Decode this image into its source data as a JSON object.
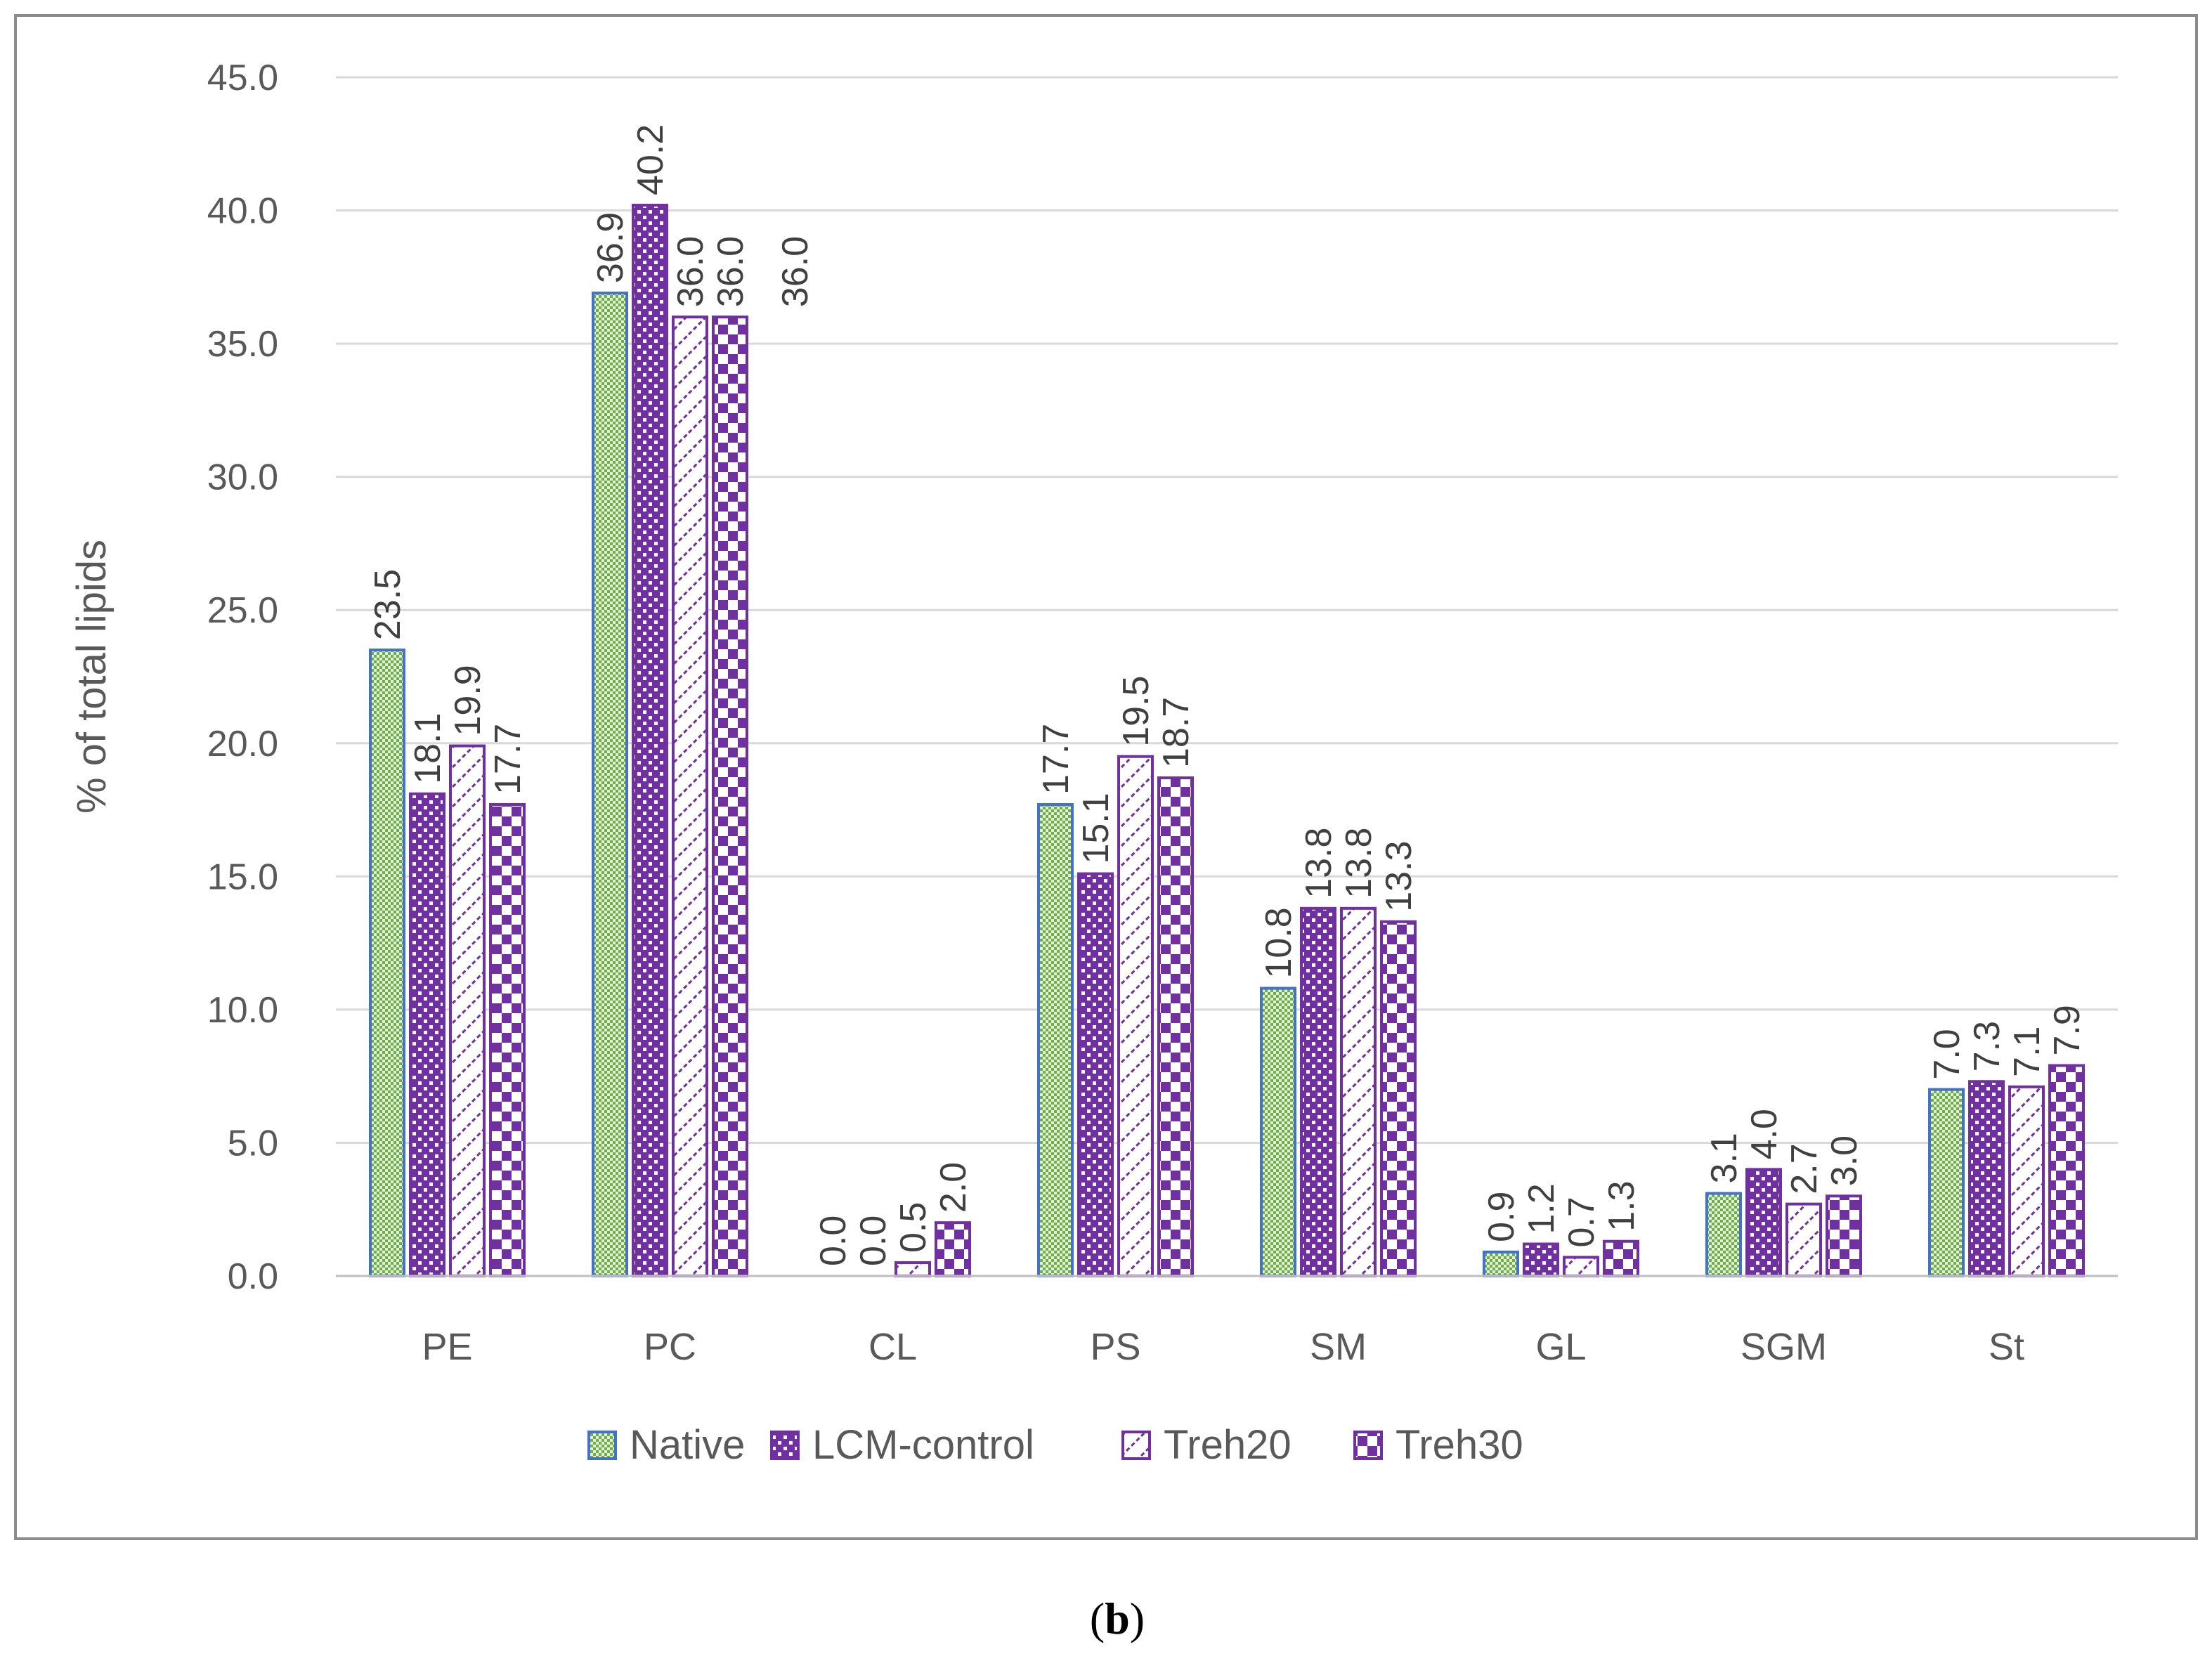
{
  "chart_data": {
    "type": "bar",
    "ylabel": "% of total lipids",
    "ylim": [
      0,
      45
    ],
    "yticks": [
      "0.0",
      "5.0",
      "10.0",
      "15.0",
      "20.0",
      "25.0",
      "30.0",
      "35.0",
      "40.0",
      "45.0"
    ],
    "grid": true,
    "legend": "bottom",
    "categories": [
      "PE",
      "PC",
      "CL",
      "PS",
      "SM",
      "GL",
      "SGM",
      "St"
    ],
    "series": [
      {
        "name": "Native",
        "values": [
          23.5,
          36.9,
          0.0,
          17.7,
          10.8,
          0.9,
          3.1,
          7.0
        ],
        "labels": [
          "23.5",
          "36.9",
          "0.0",
          "17.7",
          "10.8",
          "0.9",
          "3.1",
          "7.0"
        ],
        "color": "#a9d18e",
        "border": "#4472c4"
      },
      {
        "name": "LCM-control",
        "values": [
          18.1,
          40.2,
          0.0,
          15.1,
          13.8,
          1.2,
          4.0,
          7.3
        ],
        "labels": [
          "18.1",
          "40.2",
          "0.0",
          "15.1",
          "13.8",
          "1.2",
          "4.0",
          "7.3"
        ],
        "color": "#7030a0",
        "border": "#7030a0"
      },
      {
        "name": "Treh20",
        "values": [
          19.9,
          36.0,
          0.5,
          19.5,
          13.8,
          0.7,
          2.7,
          7.1
        ],
        "labels": [
          "19.9",
          "36.0",
          "0.5",
          "19.5",
          "13.8",
          "0.7",
          "2.7",
          "7.1"
        ],
        "color": "#7030a0",
        "border": "#7030a0"
      },
      {
        "name": "Treh30",
        "values": [
          17.7,
          36.0,
          2.0,
          18.7,
          13.3,
          1.3,
          3.0,
          7.9
        ],
        "labels": [
          "17.7",
          "36.0",
          "2.0",
          "18.7",
          "13.3",
          "1.3",
          "3.0",
          "7.9"
        ],
        "color": "#7030a0",
        "border": "#7030a0"
      }
    ],
    "extra_annotation": "36.0"
  },
  "caption": {
    "open": "(",
    "letter": "b",
    "close": ")"
  }
}
